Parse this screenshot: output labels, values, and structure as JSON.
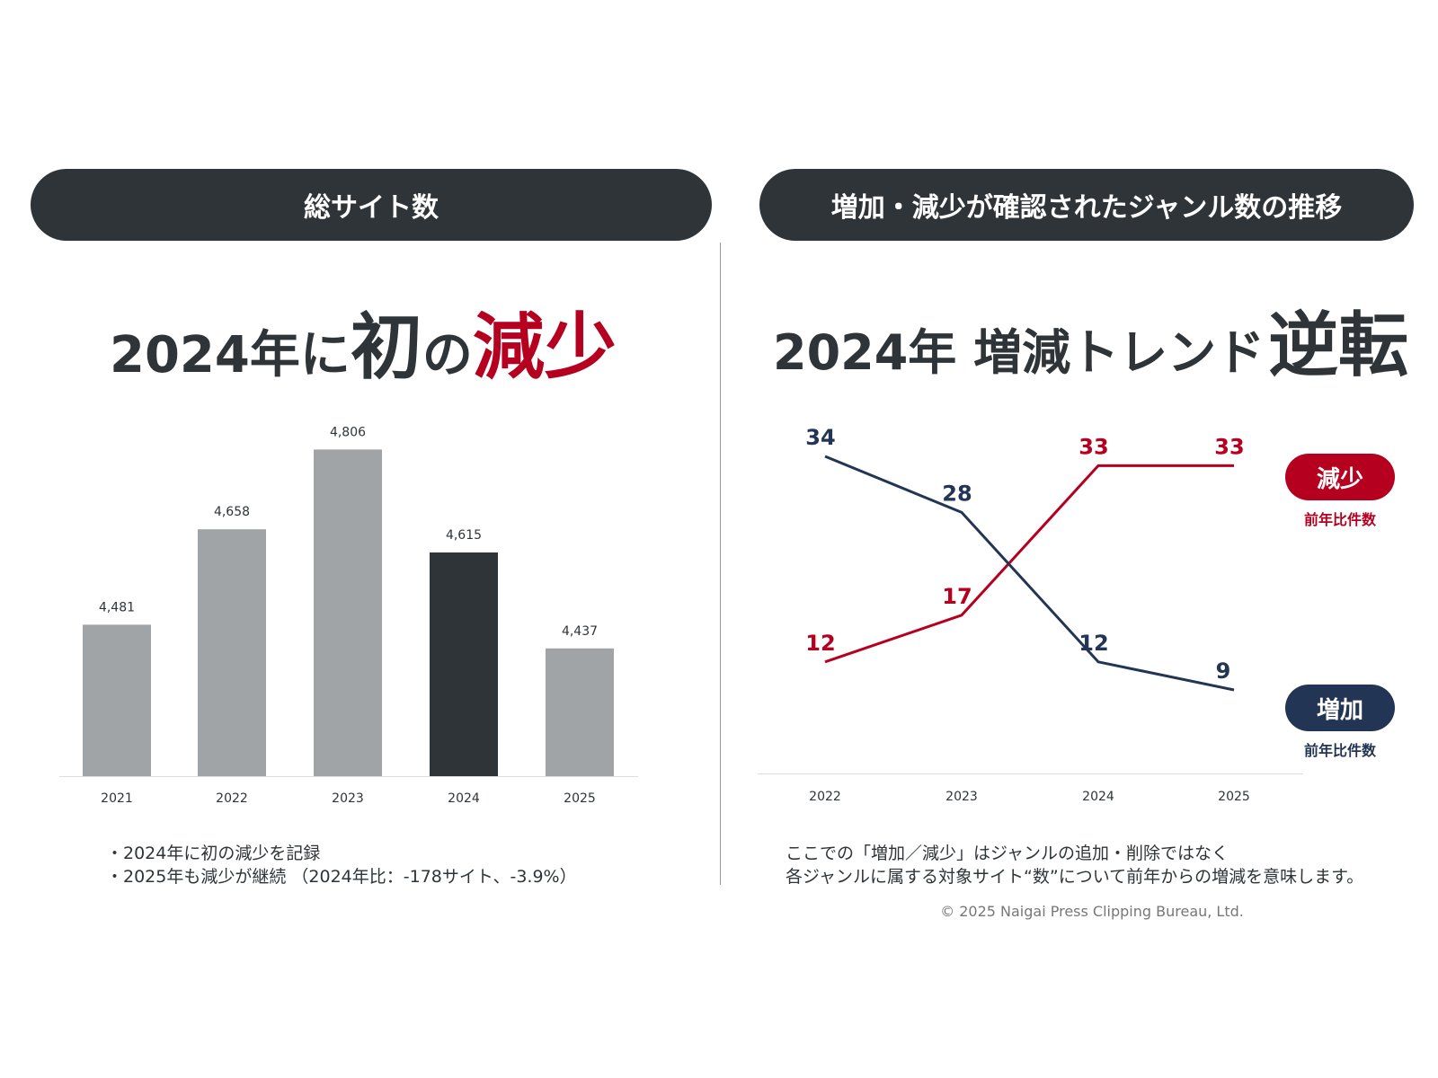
{
  "left": {
    "header": "総サイト数",
    "headline": {
      "part1": "2024年に",
      "part2": "初",
      "part3": "の",
      "part4": "減少"
    },
    "notes": [
      "・2024年に初の減少を記録",
      "・2025年も減少が継続 （2024年比：-178サイト、-3.9%）"
    ]
  },
  "right": {
    "header": "増加・減少が確認されたジャンル数の推移",
    "headline": {
      "part1": "2024年 増減トレンド",
      "part2": "逆転"
    },
    "legend": {
      "decrease_label": "減少",
      "decrease_sub": "前年比件数",
      "increase_label": "増加",
      "increase_sub": "前年比件数"
    },
    "notes": [
      "ここでの「増加／減少」はジャンルの追加・削除ではなく",
      "各ジャンルに属する対象サイト“数”について前年からの増減を意味します。"
    ]
  },
  "copyright": "© 2025 Naigai Press Clipping Bureau, Ltd.",
  "colors": {
    "dark": "#2e3437",
    "red": "#b5001f",
    "navy": "#233554",
    "gray": "#a1a4a6"
  },
  "chart_data": [
    {
      "type": "bar",
      "title": "総サイト数",
      "categories": [
        "2021",
        "2022",
        "2023",
        "2024",
        "2025"
      ],
      "values": [
        4481,
        4658,
        4806,
        4615,
        4437
      ],
      "value_labels": [
        "4,481",
        "4,658",
        "4,806",
        "4,615",
        "4,437"
      ],
      "highlight": "2024",
      "ylim": [
        4200,
        4900
      ],
      "grid": false
    },
    {
      "type": "line",
      "title": "増加・減少が確認されたジャンル数の推移",
      "x": [
        "2022",
        "2023",
        "2024",
        "2025"
      ],
      "series": [
        {
          "name": "減少",
          "color": "#b5001f",
          "values": [
            12,
            17,
            33,
            33
          ]
        },
        {
          "name": "増加",
          "color": "#233554",
          "values": [
            34,
            28,
            12,
            9
          ]
        }
      ],
      "ylim": [
        0,
        40
      ],
      "legend": "right",
      "grid": false
    }
  ]
}
